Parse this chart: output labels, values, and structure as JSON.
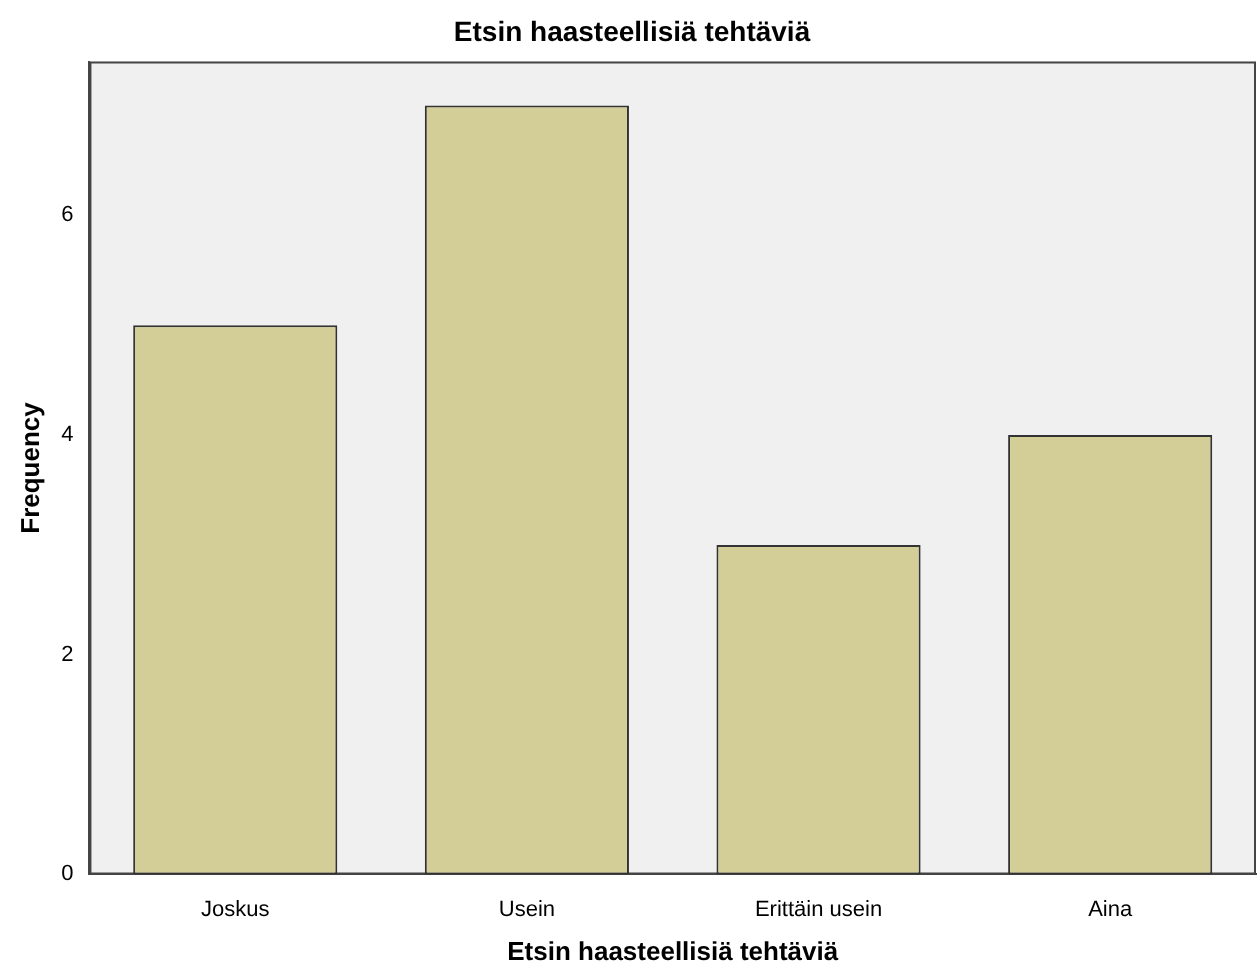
{
  "chart_data": {
    "type": "bar",
    "title": "Etsin haasteellisiä tehtäviä",
    "xlabel": "Etsin haasteellisiä tehtäviä",
    "ylabel": "Frequency",
    "categories": [
      "Joskus",
      "Usein",
      "Erittäin usein",
      "Aina"
    ],
    "values": [
      5,
      7,
      3,
      4
    ],
    "color": "#d3ce97",
    "ylim": [
      0,
      7.4
    ],
    "yticks": [
      0,
      2,
      4,
      6
    ],
    "grid": false,
    "legend": false
  }
}
